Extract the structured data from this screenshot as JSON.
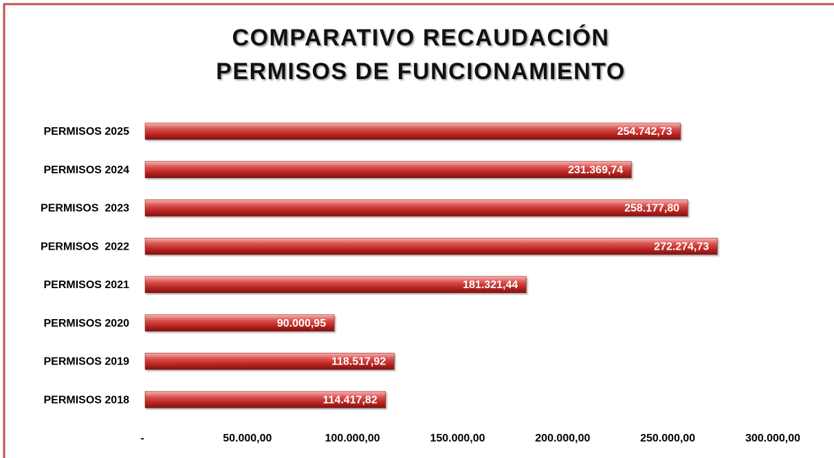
{
  "chart_data": {
    "type": "bar",
    "orientation": "horizontal",
    "title": [
      "COMPARATIVO RECAUDACIÓN",
      "PERMISOS DE FUNCIONAMIENTO"
    ],
    "categories": [
      "PERMISOS 2025",
      "PERMISOS 2024",
      "PERMISOS  2023",
      "PERMISOS  2022",
      "PERMISOS 2021",
      "PERMISOS 2020",
      "PERMISOS 2019",
      "PERMISOS 2018"
    ],
    "values": [
      254742.73,
      231369.74,
      258177.8,
      272274.73,
      181321.44,
      90000.95,
      118517.92,
      114417.82
    ],
    "value_labels": [
      "254.742,73",
      "231.369,74",
      "258.177,80",
      "272.274,73",
      "181.321,44",
      "90.000,95",
      "118.517,92",
      "114.417,82"
    ],
    "color": "#c0302f",
    "xlim": [
      0,
      300000
    ],
    "xticks": [
      {
        "value": 0,
        "label": "-"
      },
      {
        "value": 50000,
        "label": "50.000,00"
      },
      {
        "value": 100000,
        "label": "100.000,00"
      },
      {
        "value": 150000,
        "label": "150.000,00"
      },
      {
        "value": 200000,
        "label": "200.000,00"
      },
      {
        "value": 250000,
        "label": "250.000,00"
      },
      {
        "value": 300000,
        "label": "300.000,00"
      }
    ],
    "grid": false
  }
}
